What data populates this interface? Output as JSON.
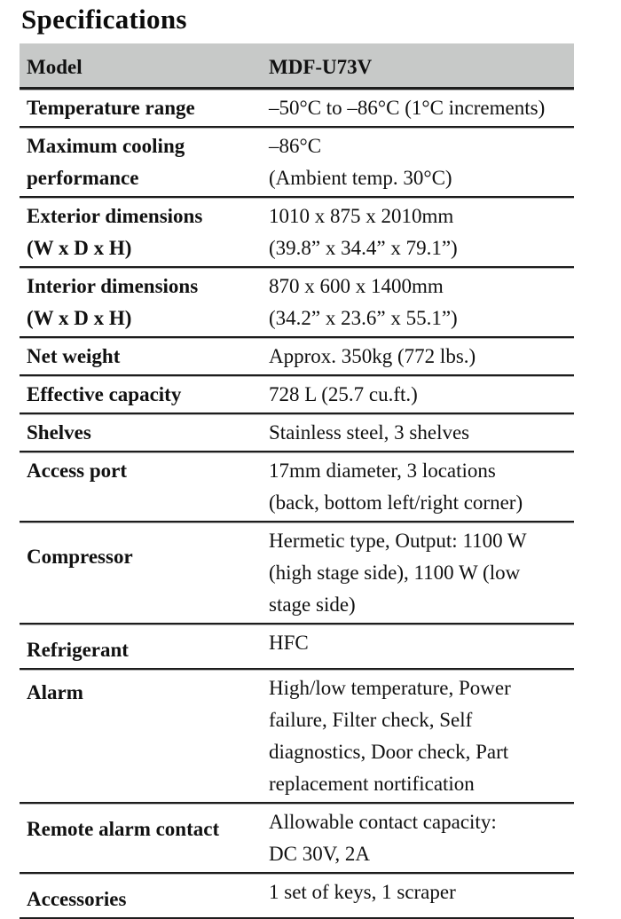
{
  "title": "Specifications",
  "colors": {
    "header_row_background": "#c7c9c8",
    "rule_dark": "#1d1d1d",
    "rule_light": "#b3b3b3",
    "text": "#111111",
    "page_background": "#ffffff"
  },
  "table": {
    "header": {
      "label": "Model",
      "value": "MDF-U73V"
    },
    "rows": [
      {
        "label": "Temperature range",
        "value": "–50°C to –86°C (1°C increments)"
      },
      {
        "label": "Maximum cooling\nperformance",
        "value": "–86°C\n(Ambient temp. 30°C)"
      },
      {
        "label": "Exterior dimensions\n(W x D x H)",
        "value": "1010 x 875 x 2010mm\n(39.8” x 34.4” x 79.1”)"
      },
      {
        "label": "Interior dimensions\n(W x D x H)",
        "value": "870 x 600 x 1400mm\n(34.2” x 23.6” x 55.1”)"
      },
      {
        "label": "Net weight",
        "value": "Approx. 350kg (772 lbs.)"
      },
      {
        "label": "Effective capacity",
        "value": "728 L (25.7 cu.ft.)"
      },
      {
        "label": "Shelves",
        "value": "Stainless steel, 3 shelves"
      },
      {
        "label": "Access port",
        "value": "17mm diameter, 3 locations\n(back, bottom left/right corner)"
      },
      {
        "label": "Compressor",
        "value": "Hermetic type, Output: 1100 W\n(high stage side), 1100 W (low\nstage side)"
      },
      {
        "label": "Refrigerant",
        "value": "HFC"
      },
      {
        "label": "Alarm",
        "value": "High/low temperature, Power\nfailure, Filter check, Self\ndiagnostics, Door check, Part\nreplacement nortification"
      },
      {
        "label": "Remote alarm contact",
        "value": "Allowable contact capacity:\nDC 30V, 2A"
      },
      {
        "label": "Accessories",
        "value": "1 set of keys, 1 scraper"
      }
    ]
  }
}
